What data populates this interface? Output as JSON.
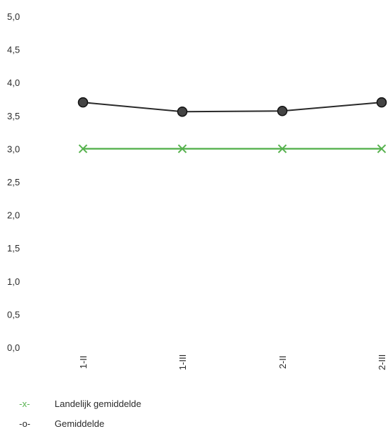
{
  "chart_data": {
    "type": "line",
    "categories": [
      "1-II",
      "1-III",
      "2-II",
      "2-III"
    ],
    "series": [
      {
        "name": "Landelijk gemiddelde",
        "marker": "x",
        "legend_symbol": "-x-",
        "color": "#57b24f",
        "values": [
          3.0,
          3.0,
          3.0,
          3.0
        ]
      },
      {
        "name": "Gemiddelde",
        "marker": "o",
        "legend_symbol": "-o-",
        "color": "#2a2a2a",
        "values": [
          3.7,
          3.56,
          3.57,
          3.7
        ]
      }
    ],
    "yticks": [
      "0,0",
      "0,5",
      "1,0",
      "1,5",
      "2,0",
      "2,5",
      "3,0",
      "3,5",
      "4,0",
      "4,5",
      "5,0"
    ],
    "ylim": [
      0,
      5
    ],
    "grid": false,
    "legend_position": "bottom-left"
  }
}
